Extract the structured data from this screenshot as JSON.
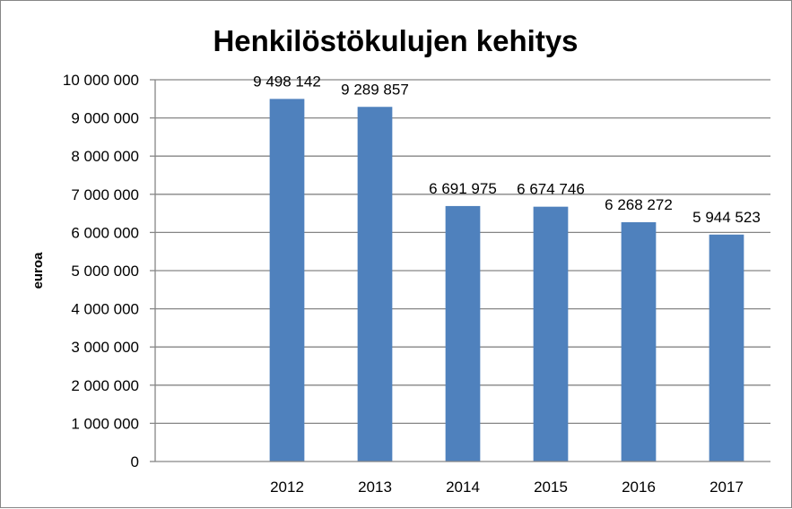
{
  "chart_data": {
    "type": "bar",
    "title": "Henkilöstökulujen kehitys",
    "xlabel": "",
    "ylabel": "euroa",
    "categories": [
      "",
      "2012",
      "2013",
      "2014",
      "2015",
      "2016",
      "2017"
    ],
    "values": [
      null,
      9498142,
      9289857,
      6691975,
      6674746,
      6268272,
      5944523
    ],
    "data_labels": [
      "",
      "9 498 142",
      "9 289 857",
      "6 691 975",
      "6 674 746",
      "6 268 272",
      "5 944 523"
    ],
    "ylim": [
      0,
      10000000
    ],
    "yticks": [
      0,
      1000000,
      2000000,
      3000000,
      4000000,
      5000000,
      6000000,
      7000000,
      8000000,
      9000000,
      10000000
    ],
    "ytick_labels": [
      "0",
      "1 000 000",
      "2 000 000",
      "3 000 000",
      "4 000 000",
      "5 000 000",
      "6 000 000",
      "7 000 000",
      "8 000 000",
      "9 000 000",
      "10 000 000"
    ],
    "grid": true,
    "legend": "none",
    "colors": {
      "bar": "#4f81bd",
      "grid": "#868686",
      "axis": "#868686"
    }
  }
}
